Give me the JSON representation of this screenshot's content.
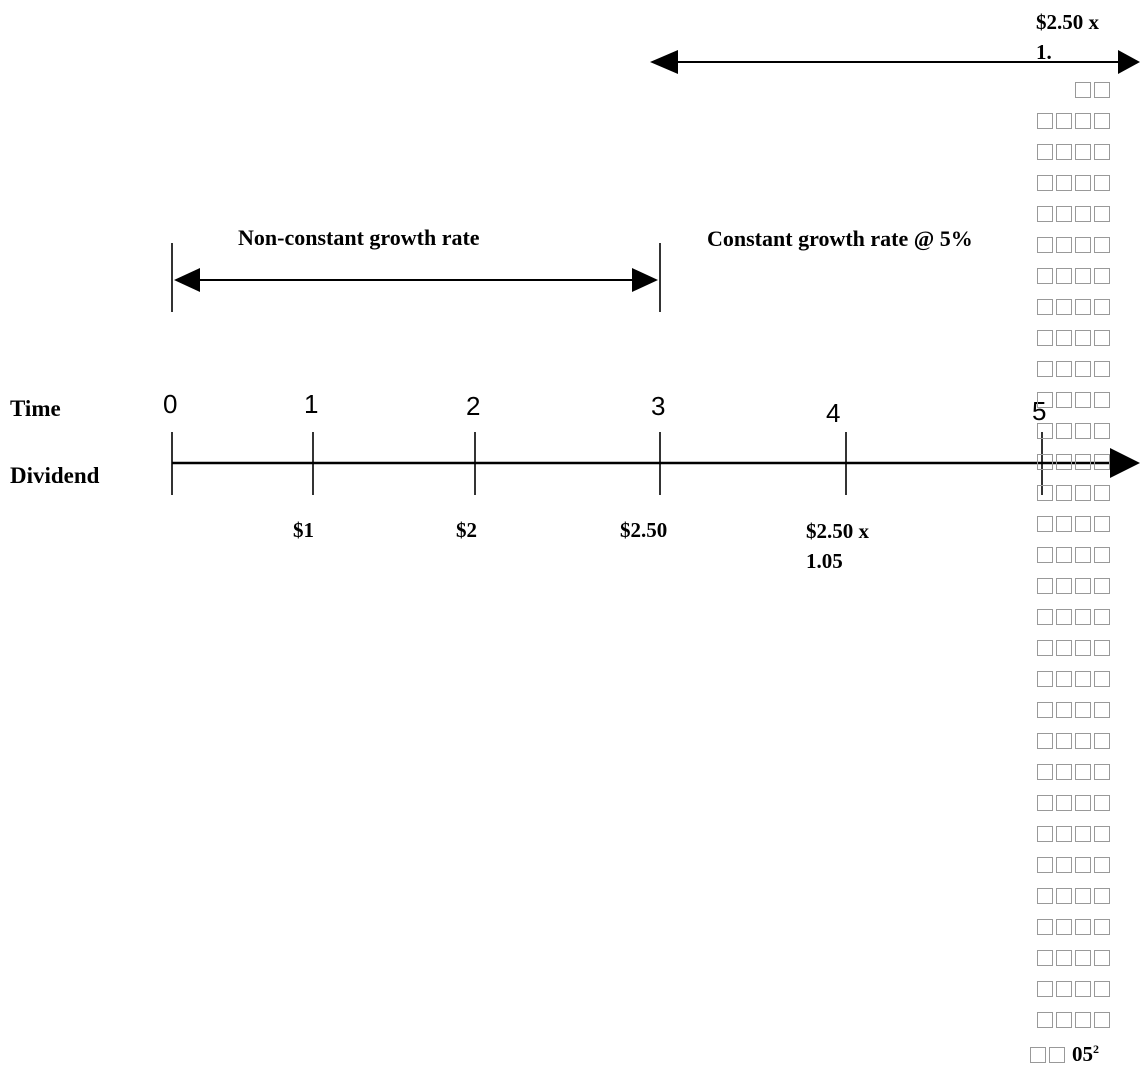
{
  "upper_label": {
    "line1": "$2.50 x",
    "line2": "1."
  },
  "phases": {
    "non_constant": "Non-constant growth rate",
    "constant": "Constant growth rate @ 5%"
  },
  "row_labels": {
    "time": "Time",
    "dividend": "Dividend"
  },
  "ticks": [
    {
      "time": "0",
      "dividend": ""
    },
    {
      "time": "1",
      "dividend": "$1"
    },
    {
      "time": "2",
      "dividend": "$2"
    },
    {
      "time": "3",
      "dividend": "$2.50"
    },
    {
      "time": "4",
      "dividend_line1": "$2.50 x",
      "dividend_line2": "1.05"
    },
    {
      "time": "5",
      "dividend": ""
    }
  ],
  "overflow_tail": {
    "text": "05",
    "superscript": "2"
  },
  "colors": {
    "line": "#000000",
    "box_border": "#999999"
  }
}
